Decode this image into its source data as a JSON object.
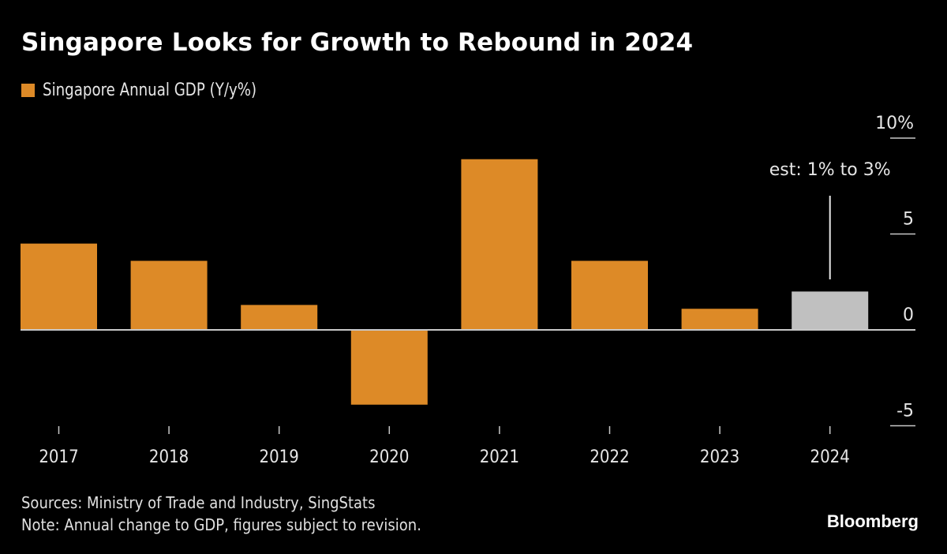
{
  "title": "Singapore Looks for Growth to Rebound in 2024",
  "legend": [
    {
      "label": "Singapore Annual GDP (Y/y%)",
      "color": "#dd8a27"
    }
  ],
  "annotation": {
    "text": "est: 1% to 3%",
    "category": "2024"
  },
  "footer": {
    "sources": "Sources: Ministry of Trade and Industry, SingStats",
    "note": "Note: Annual change to GDP, figures subject to revision."
  },
  "brand": "Bloomberg",
  "colors": {
    "bar": "#dd8a27",
    "estimate_bar": "#c0c0c0",
    "axis": "#c8c8c8",
    "text": "#e6e6e6",
    "background": "#000000"
  },
  "chart_data": {
    "type": "bar",
    "title": "Singapore Looks for Growth to Rebound in 2024",
    "xlabel": "",
    "ylabel": "",
    "categories": [
      "2017",
      "2018",
      "2019",
      "2020",
      "2021",
      "2022",
      "2023",
      "2024"
    ],
    "series": [
      {
        "name": "Singapore Annual GDP (Y/y%)",
        "values": [
          4.5,
          3.6,
          1.3,
          -3.9,
          8.9,
          3.6,
          1.1,
          2.0
        ],
        "estimated": [
          false,
          false,
          false,
          false,
          false,
          false,
          false,
          true
        ]
      }
    ],
    "ylim": [
      -5,
      10
    ],
    "yticks": [
      10,
      5,
      0,
      -5
    ],
    "ytick_labels": [
      "10%",
      "5",
      "0",
      "-5"
    ],
    "y_axis_side": "right",
    "grid": false,
    "legend_position": "top-left",
    "annotations": [
      {
        "category": "2024",
        "text": "est: 1% to 3%"
      }
    ]
  }
}
